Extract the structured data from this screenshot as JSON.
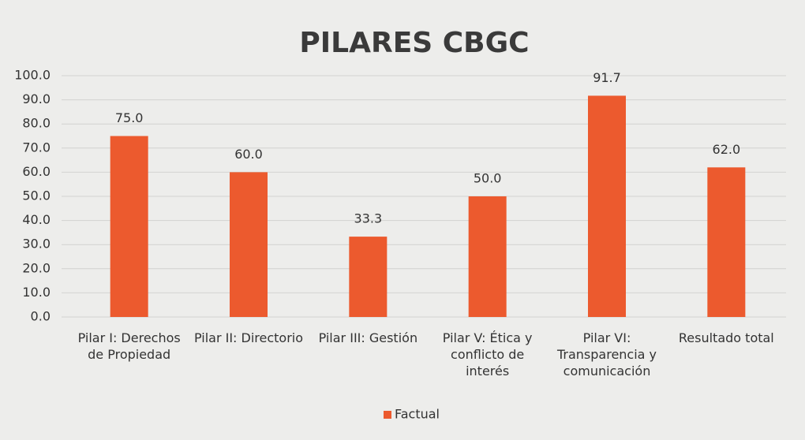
{
  "chart_data": {
    "type": "bar",
    "title": "PILARES CBGC",
    "categories": [
      "Pilar I: Derechos de Propiedad",
      "Pilar II: Directorio",
      "Pilar III: Gestión",
      "Pilar V: Ética y conflicto de interés",
      "Pilar VI: Transparencia y comunicación",
      "Resultado total"
    ],
    "series": [
      {
        "name": "Factual",
        "color": "#ec5a2e",
        "values": [
          75.0,
          60.0,
          33.3,
          50.0,
          91.7,
          62.0
        ],
        "value_labels": [
          "75.0",
          "60.0",
          "33.3",
          "50.0",
          "91.7",
          "62.0"
        ]
      }
    ],
    "ylim": [
      0,
      100
    ],
    "yticks": [
      {
        "value": 0,
        "label": "0.0"
      },
      {
        "value": 10,
        "label": "10.0"
      },
      {
        "value": 20,
        "label": "20.0"
      },
      {
        "value": 30,
        "label": "30.0"
      },
      {
        "value": 40,
        "label": "40.0"
      },
      {
        "value": 50,
        "label": "50.0"
      },
      {
        "value": 60,
        "label": "60.0"
      },
      {
        "value": 70,
        "label": "70.0"
      },
      {
        "value": 80,
        "label": "80.0"
      },
      {
        "value": 90,
        "label": "90.0"
      },
      {
        "value": 100,
        "label": "100.0"
      }
    ],
    "grid": true,
    "legend": "bottom"
  }
}
